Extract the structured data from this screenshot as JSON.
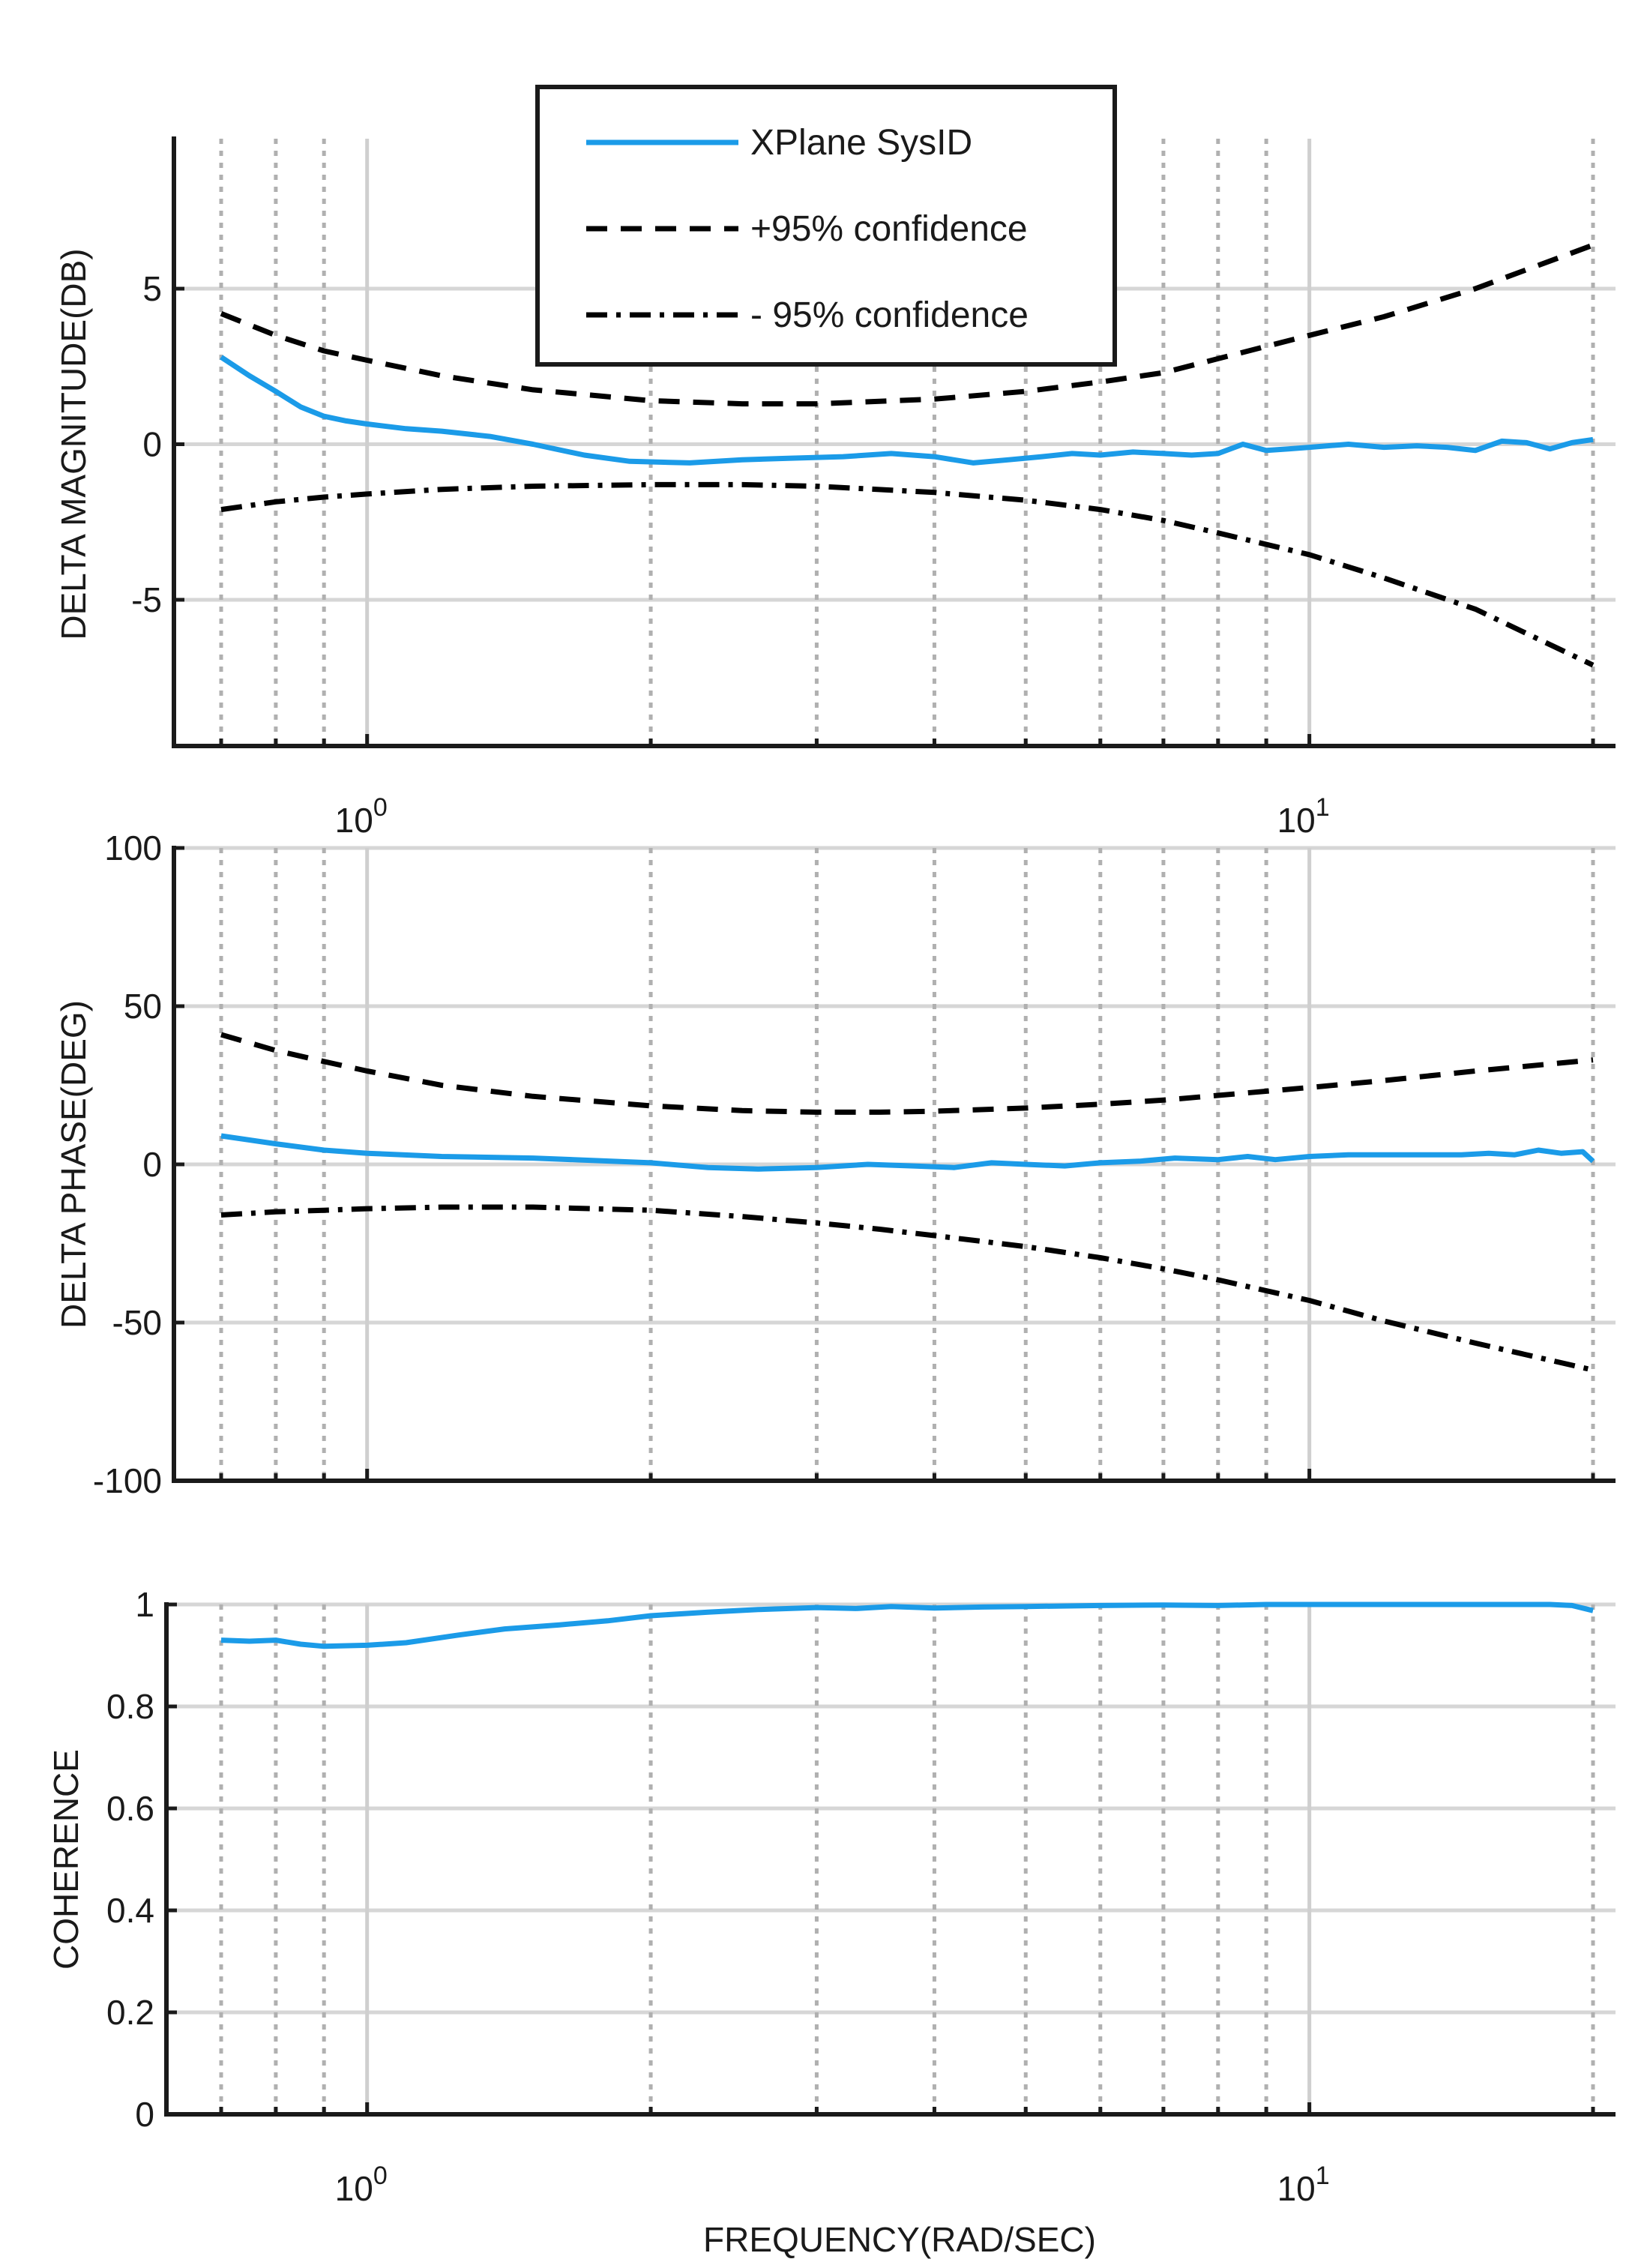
{
  "chart_data": [
    {
      "type": "line",
      "id": "magnitude",
      "ylabel": "DELTA MAGNITUDE(DB)",
      "xlabel": "",
      "xscale": "log",
      "xlim": [
        0.7,
        20
      ],
      "ylim": [
        -9.7,
        9.7
      ],
      "yticks": [
        5,
        0,
        -5
      ],
      "ytick_labels": [
        "5",
        "0",
        "-5"
      ],
      "xtick_labels": [
        {
          "base": "10",
          "exp": "0",
          "value": 1
        },
        {
          "base": "10",
          "exp": "1",
          "value": 10
        }
      ],
      "grid": true,
      "series": [
        {
          "name": "XPlane SysID",
          "style": "solid",
          "color": "#1b9be8",
          "x": [
            0.7,
            0.75,
            0.8,
            0.85,
            0.9,
            0.95,
            1.0,
            1.1,
            1.2,
            1.35,
            1.5,
            1.7,
            1.9,
            2.2,
            2.5,
            2.8,
            3.2,
            3.6,
            4.0,
            4.4,
            4.8,
            5.2,
            5.6,
            6.0,
            6.5,
            7.0,
            7.5,
            8.0,
            8.5,
            9.0,
            9.5,
            10,
            11,
            12,
            13,
            14,
            15,
            16,
            17,
            18,
            19,
            20
          ],
          "y": [
            2.8,
            2.2,
            1.7,
            1.2,
            0.9,
            0.75,
            0.65,
            0.5,
            0.42,
            0.25,
            0.0,
            -0.35,
            -0.55,
            -0.6,
            -0.5,
            -0.45,
            -0.4,
            -0.3,
            -0.4,
            -0.6,
            -0.5,
            -0.4,
            -0.3,
            -0.35,
            -0.25,
            -0.3,
            -0.35,
            -0.3,
            0.0,
            -0.2,
            -0.15,
            -0.1,
            0.0,
            -0.1,
            -0.05,
            -0.1,
            -0.2,
            0.1,
            0.05,
            -0.15,
            0.05,
            0.15
          ]
        },
        {
          "name": "+95% confidence",
          "style": "dashed",
          "color": "#000000",
          "x": [
            0.7,
            0.8,
            0.9,
            1.0,
            1.2,
            1.5,
            2.0,
            2.5,
            3.0,
            4.0,
            5.0,
            6.0,
            7.0,
            8.0,
            10,
            12,
            15,
            20
          ],
          "y": [
            4.2,
            3.5,
            3.0,
            2.7,
            2.2,
            1.75,
            1.4,
            1.3,
            1.3,
            1.45,
            1.7,
            2.0,
            2.3,
            2.75,
            3.5,
            4.1,
            5.0,
            6.4
          ]
        },
        {
          "name": "- 95% confidence",
          "style": "dashdot",
          "color": "#000000",
          "x": [
            0.7,
            0.8,
            0.9,
            1.0,
            1.2,
            1.5,
            2.0,
            2.5,
            3.0,
            4.0,
            5.0,
            6.0,
            7.0,
            8.0,
            10,
            12,
            15,
            20
          ],
          "y": [
            -2.1,
            -1.85,
            -1.7,
            -1.6,
            -1.45,
            -1.35,
            -1.3,
            -1.3,
            -1.35,
            -1.55,
            -1.8,
            -2.1,
            -2.45,
            -2.85,
            -3.55,
            -4.3,
            -5.3,
            -7.1
          ]
        }
      ]
    },
    {
      "type": "line",
      "id": "phase",
      "ylabel": "DELTA PHASE(DEG)",
      "xlabel": "",
      "xscale": "log",
      "xlim": [
        0.7,
        20
      ],
      "ylim": [
        -100,
        100
      ],
      "yticks": [
        100,
        50,
        0,
        -50,
        -100
      ],
      "ytick_labels": [
        "100",
        "50",
        "0",
        "-50",
        "-100"
      ],
      "grid": true,
      "series": [
        {
          "name": "XPlane SysID",
          "style": "solid",
          "color": "#1b9be8",
          "x": [
            0.7,
            0.8,
            0.9,
            1.0,
            1.2,
            1.5,
            2.0,
            2.3,
            2.6,
            3.0,
            3.4,
            3.8,
            4.2,
            4.6,
            5.0,
            5.5,
            6.0,
            6.6,
            7.2,
            8.0,
            8.6,
            9.2,
            10,
            11,
            12,
            13.5,
            14.5,
            15.5,
            16.5,
            17.5,
            18.5,
            19.5,
            20
          ],
          "y": [
            9,
            6.5,
            4.5,
            3.5,
            2.5,
            2,
            0.5,
            -1,
            -1.5,
            -1,
            0,
            -0.5,
            -1,
            0.5,
            0,
            -0.5,
            0.5,
            1,
            2,
            1.5,
            2.5,
            1.5,
            2.5,
            3,
            3,
            3,
            3,
            3.5,
            3,
            4.5,
            3.5,
            4,
            1
          ]
        },
        {
          "name": "+95% confidence",
          "style": "dashed",
          "color": "#000000",
          "x": [
            0.7,
            0.8,
            0.9,
            1.0,
            1.2,
            1.5,
            2.0,
            2.5,
            3.0,
            3.5,
            4.0,
            5.0,
            6.0,
            7.0,
            8.0,
            10,
            12,
            15,
            20
          ],
          "y": [
            41,
            36,
            32.5,
            29.5,
            25,
            21.5,
            18.5,
            17,
            16.5,
            16.5,
            16.8,
            17.8,
            19,
            20.3,
            21.8,
            24.3,
            26.5,
            29.5,
            33
          ]
        },
        {
          "name": "- 95% confidence",
          "style": "dashdot",
          "color": "#000000",
          "x": [
            0.7,
            0.8,
            0.9,
            1.0,
            1.2,
            1.5,
            2.0,
            2.5,
            3.0,
            3.5,
            4.0,
            5.0,
            6.0,
            7.0,
            8.0,
            10,
            12,
            15,
            20
          ],
          "y": [
            -16,
            -15,
            -14.5,
            -14,
            -13.5,
            -13.5,
            -14.5,
            -16.5,
            -18.5,
            -20.5,
            -22.5,
            -26,
            -29.5,
            -33,
            -36.5,
            -43,
            -49.5,
            -56.5,
            -65
          ]
        }
      ]
    },
    {
      "type": "line",
      "id": "coherence",
      "ylabel": "COHERENCE",
      "xlabel": "FREQUENCY(RAD/SEC)",
      "xscale": "log",
      "xlim": [
        0.7,
        20
      ],
      "ylim": [
        0,
        1
      ],
      "yticks": [
        1,
        0.8,
        0.6,
        0.4,
        0.2,
        0
      ],
      "ytick_labels": [
        "1",
        "0.8",
        "0.6",
        "0.4",
        "0.2",
        "0"
      ],
      "xtick_labels": [
        {
          "base": "10",
          "exp": "0",
          "value": 1
        },
        {
          "base": "10",
          "exp": "1",
          "value": 10
        }
      ],
      "grid": true,
      "series": [
        {
          "name": "XPlane SysID",
          "style": "solid",
          "color": "#1b9be8",
          "x": [
            0.7,
            0.75,
            0.8,
            0.85,
            0.9,
            1.0,
            1.1,
            1.25,
            1.4,
            1.6,
            1.8,
            2.0,
            2.3,
            2.6,
            3.0,
            3.3,
            3.6,
            4.0,
            4.5,
            5.0,
            6.0,
            7.0,
            8.0,
            9.0,
            10,
            12,
            14,
            16,
            18,
            19,
            20
          ],
          "y": [
            0.93,
            0.928,
            0.93,
            0.922,
            0.918,
            0.92,
            0.925,
            0.94,
            0.952,
            0.96,
            0.968,
            0.978,
            0.985,
            0.99,
            0.994,
            0.992,
            0.996,
            0.993,
            0.995,
            0.996,
            0.998,
            0.999,
            0.998,
            1.0,
            1.0,
            1.0,
            1.0,
            1.0,
            1.0,
            0.998,
            0.988
          ]
        }
      ]
    }
  ],
  "legend": {
    "entries": [
      {
        "label": "XPlane SysID",
        "style": "solid",
        "color": "#1b9be8"
      },
      {
        "label": "+95% confidence",
        "style": "dashed",
        "color": "#000000"
      },
      {
        "label": "- 95% confidence",
        "style": "dashdot",
        "color": "#000000"
      }
    ]
  },
  "axis_tick_labels": {
    "x_base": "10",
    "x_exp0": "0",
    "x_exp1": "1"
  }
}
